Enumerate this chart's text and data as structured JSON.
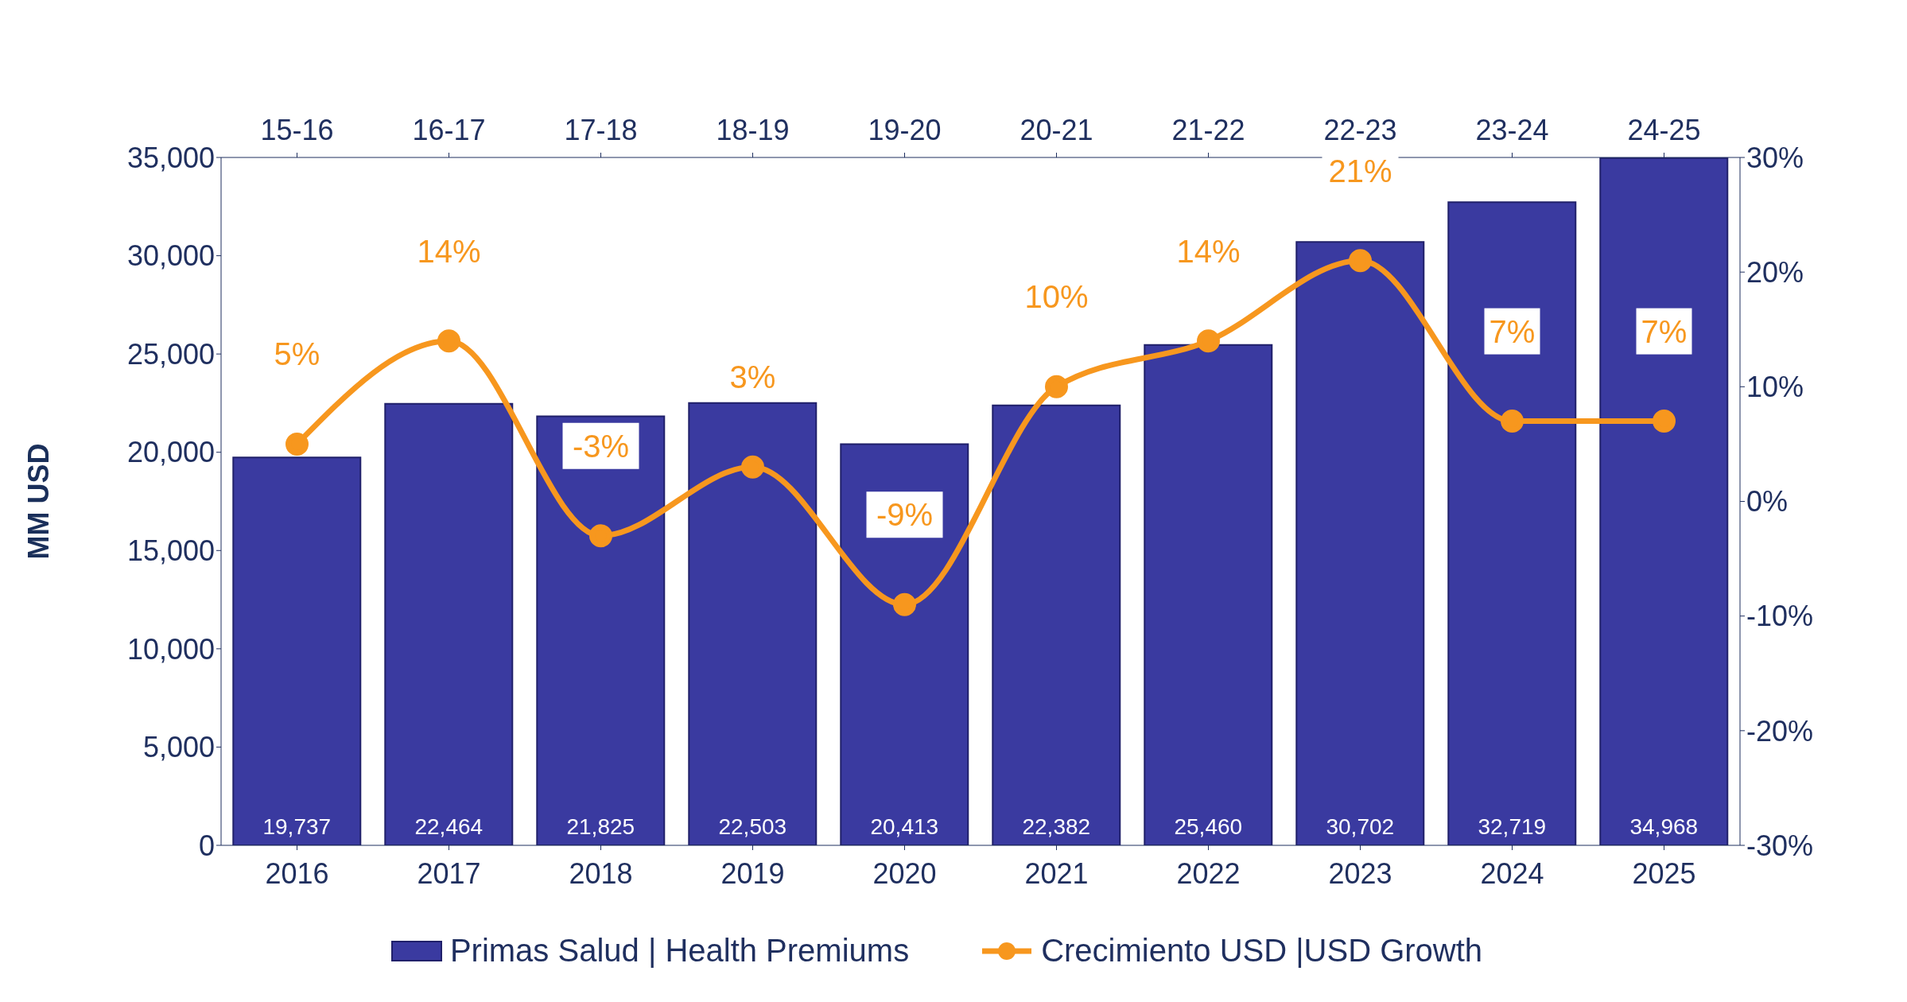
{
  "chart_data": {
    "type": "bar",
    "categories": [
      "2016",
      "2017",
      "2018",
      "2019",
      "2020",
      "2021",
      "2022",
      "2023",
      "2024",
      "2025"
    ],
    "ylabel": "MM USD",
    "series": [
      {
        "name": "Primas Salud | Health Premiums",
        "color": "#3a3aa0",
        "values": [
          19737,
          22464,
          21825,
          22503,
          20413,
          22382,
          25460,
          30702,
          32719,
          34968
        ]
      },
      {
        "name": "Crecimiento USD |USD Growth",
        "type": "line",
        "axis": "y2",
        "color": "#f7971e",
        "marker": "circle",
        "values": [
          5,
          14,
          -3,
          3,
          -9,
          10,
          14,
          21,
          7,
          7
        ]
      }
    ],
    "ylim": [
      0,
      35000
    ],
    "yticks": [
      {
        "value": 0,
        "label": "0"
      },
      {
        "value": 5000,
        "label": "5,000"
      },
      {
        "value": 10000,
        "label": "10,000"
      },
      {
        "value": 15000,
        "label": "15,000"
      },
      {
        "value": 20000,
        "label": "20,000"
      },
      {
        "value": 25000,
        "label": "25,000"
      },
      {
        "value": 30000,
        "label": "30,000"
      },
      {
        "value": 35000,
        "label": "35,000"
      }
    ],
    "y2lim": [
      -30,
      30
    ],
    "y2ticks": [
      {
        "value": -30,
        "label": "-30%"
      },
      {
        "value": -20,
        "label": "-20%"
      },
      {
        "value": -10,
        "label": "-10%"
      },
      {
        "value": 0,
        "label": "0%"
      },
      {
        "value": 10,
        "label": "10%"
      },
      {
        "value": 20,
        "label": "20%"
      },
      {
        "value": 30,
        "label": "30%"
      }
    ],
    "value_labels": [
      [
        "19,737",
        "22,464",
        "21,825",
        "22,503",
        "20,413",
        "22,382",
        "25,460",
        "30,702",
        "32,719",
        "34,968"
      ],
      [
        "5%",
        "14%",
        "-3%",
        "3%",
        "-9%",
        "10%",
        "14%",
        "21%",
        "7%",
        "7%"
      ]
    ],
    "annotations": [
      "15-16",
      "16-17",
      "17-18",
      "18-19",
      "19-20",
      "20-21",
      "21-22",
      "22-23",
      "23-24",
      "24-25"
    ],
    "grid": false,
    "legend": "bottom"
  }
}
